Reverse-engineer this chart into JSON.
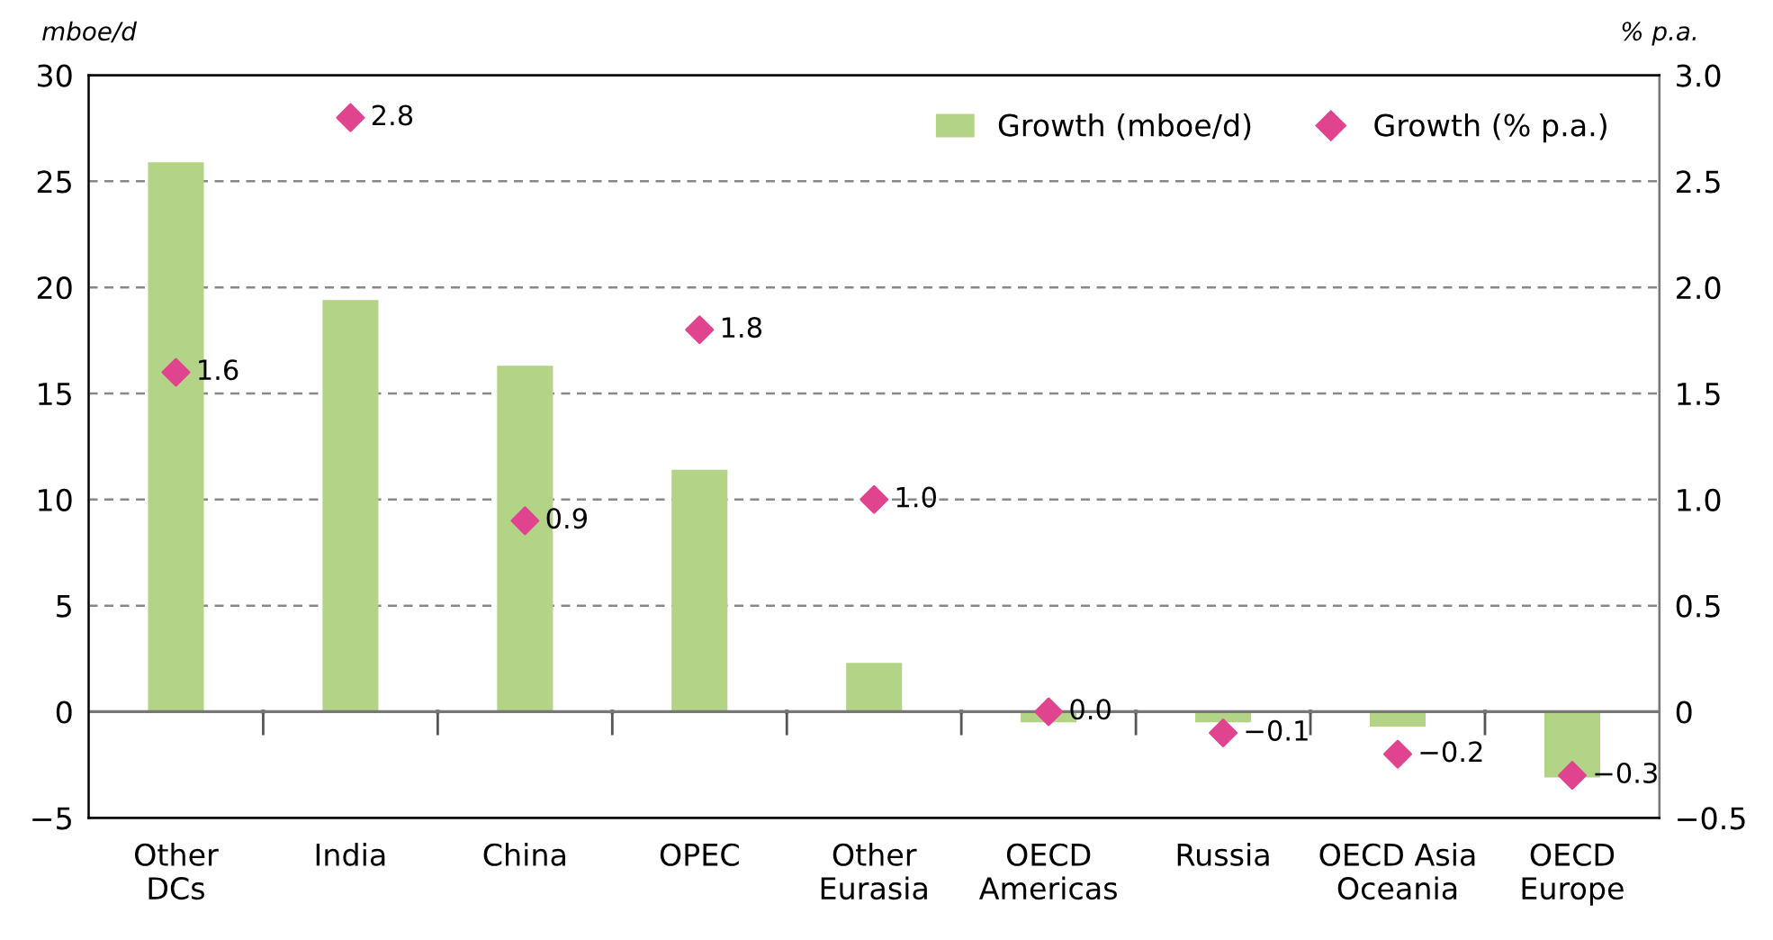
{
  "chart_data": {
    "type": "bar",
    "ylabel": "mboe/d",
    "y2label": "% p.a.",
    "categories": [
      "Other\nDCs",
      "India",
      "China",
      "OPEC",
      "Other\nEurasia",
      "OECD\nAmericas",
      "Russia",
      "OECD Asia\nOceania",
      "OECD\nEurope"
    ],
    "series": [
      {
        "name": "Growth (mboe/d)",
        "color": "#b3d386",
        "values": [
          25.9,
          19.4,
          16.3,
          11.4,
          2.3,
          -0.5,
          -0.5,
          -0.7,
          -3.1
        ]
      },
      {
        "name": "Growth (% p.a.)",
        "type": "scatter",
        "axis": "y2",
        "color": "#e0448f",
        "marker": "diamond",
        "values": [
          1.6,
          2.8,
          0.9,
          1.8,
          1.0,
          0.0,
          -0.1,
          -0.2,
          -0.3
        ],
        "value_labels": [
          "1.6",
          "2.8",
          "0.9",
          "1.8",
          "1.0",
          "0.0",
          "−0.1",
          "−0.2",
          "−0.3"
        ]
      }
    ],
    "ylim": [
      -5,
      30
    ],
    "yticks": [
      {
        "value": -5,
        "label": "−5"
      },
      0,
      5,
      10,
      15,
      20,
      25,
      30
    ],
    "y2lim": [
      -0.5,
      3.0
    ],
    "y2ticks": [
      {
        "value": -0.5,
        "label": "−0.5"
      },
      {
        "value": 0,
        "label": "0"
      },
      {
        "value": 0.5,
        "label": "0.5"
      },
      {
        "value": 1.0,
        "label": "1.0"
      },
      {
        "value": 1.5,
        "label": "1.5"
      },
      {
        "value": 2.0,
        "label": "2.0"
      },
      {
        "value": 2.5,
        "label": "2.5"
      },
      {
        "value": 3.0,
        "label": "3.0"
      }
    ],
    "grid": "y",
    "legend": "top right"
  }
}
